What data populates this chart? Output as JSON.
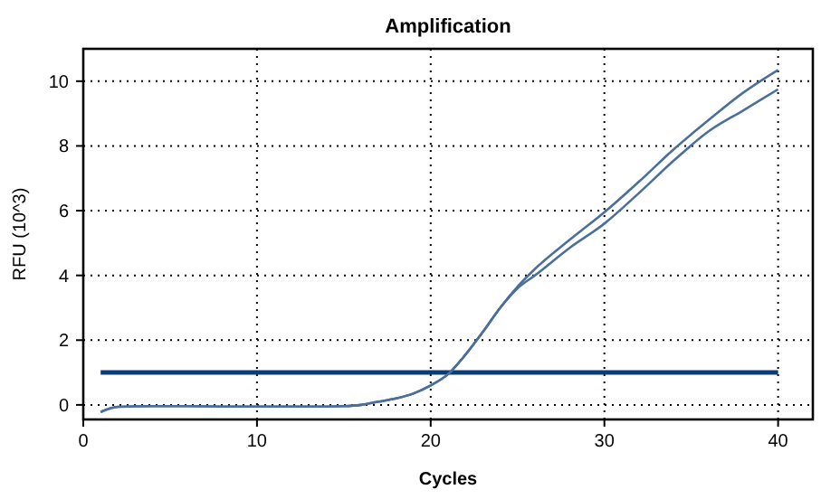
{
  "chart_data": {
    "type": "line",
    "title": "Amplification",
    "xlabel": "Cycles",
    "ylabel": "RFU (10^3)",
    "xlim": [
      0,
      42
    ],
    "xticks": [
      0,
      10,
      20,
      30,
      40
    ],
    "ylim": [
      -0.45,
      11
    ],
    "yticks": [
      0,
      2,
      4,
      6,
      8,
      10
    ],
    "grid": true,
    "marker": "none",
    "line_style": "solid",
    "series": [
      {
        "color": "#4a6f9c",
        "x": [
          1,
          2,
          4,
          6,
          8,
          10,
          12,
          14,
          15,
          16,
          17,
          18,
          19,
          20,
          21,
          22,
          23,
          24,
          25,
          26,
          28,
          30,
          32,
          34,
          36,
          38,
          40
        ],
        "values": [
          -0.22,
          -0.06,
          -0.04,
          -0.04,
          -0.05,
          -0.05,
          -0.05,
          -0.05,
          -0.04,
          0.0,
          0.1,
          0.2,
          0.35,
          0.6,
          0.95,
          1.55,
          2.25,
          3.0,
          3.65,
          4.2,
          5.1,
          5.95,
          6.9,
          7.9,
          8.8,
          9.65,
          10.35
        ]
      },
      {
        "color": "#4a6f9c",
        "x": [
          1,
          2,
          4,
          6,
          8,
          10,
          12,
          14,
          15,
          16,
          17,
          18,
          19,
          20,
          21,
          22,
          23,
          24,
          25,
          26,
          28,
          30,
          32,
          34,
          36,
          38,
          40
        ],
        "values": [
          -0.22,
          -0.06,
          -0.04,
          -0.04,
          -0.05,
          -0.05,
          -0.05,
          -0.05,
          -0.04,
          0.0,
          0.1,
          0.2,
          0.35,
          0.6,
          0.95,
          1.55,
          2.25,
          3.0,
          3.6,
          4.0,
          4.85,
          5.6,
          6.55,
          7.55,
          8.45,
          9.1,
          9.75
        ]
      }
    ],
    "ref_lines": [
      {
        "axis": "y",
        "value": 1,
        "color": "#0a3d78"
      }
    ]
  }
}
